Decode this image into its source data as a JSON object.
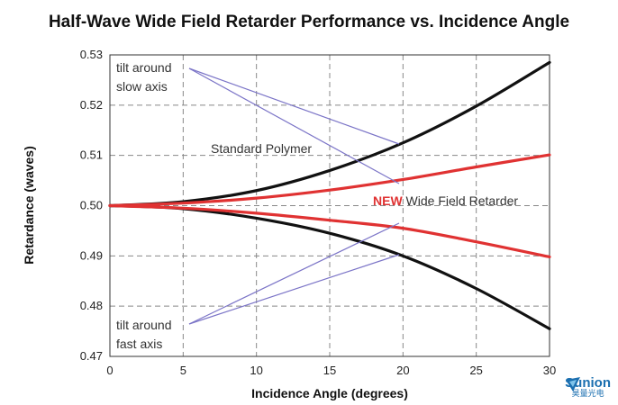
{
  "chart_data": {
    "type": "line",
    "title": "Half-Wave Wide Field Retarder Performance vs. Incidence Angle",
    "xlabel": "Incidence Angle (degrees)",
    "ylabel": "Retardance (waves)",
    "xlim": [
      0,
      30
    ],
    "ylim": [
      0.47,
      0.53
    ],
    "xticks": [
      "0",
      "5",
      "10",
      "15",
      "20",
      "25",
      "30"
    ],
    "yticks": [
      "0.47",
      "0.48",
      "0.49",
      "0.50",
      "0.51",
      "0.52",
      "0.53"
    ],
    "grid": true,
    "series": [
      {
        "name": "Standard Polymer",
        "axis": "slow",
        "color": "#111111",
        "x": [
          0,
          5,
          10,
          15,
          20,
          25,
          30
        ],
        "y": [
          0.5,
          0.5008,
          0.503,
          0.507,
          0.5125,
          0.5198,
          0.5285
        ]
      },
      {
        "name": "Standard Polymer",
        "axis": "fast",
        "color": "#111111",
        "x": [
          0,
          5,
          10,
          15,
          20,
          25,
          30
        ],
        "y": [
          0.5,
          0.4994,
          0.4975,
          0.4945,
          0.49,
          0.4835,
          0.4755
        ]
      },
      {
        "name": "NEW Wide Field Retarder",
        "axis": "slow",
        "color": "#e03232",
        "x": [
          0,
          5,
          10,
          15,
          20,
          25,
          30
        ],
        "y": [
          0.5,
          0.5005,
          0.5015,
          0.5031,
          0.5052,
          0.5077,
          0.5101
        ]
      },
      {
        "name": "NEW Wide Field Retarder",
        "axis": "fast",
        "color": "#e03232",
        "x": [
          0,
          5,
          10,
          15,
          20,
          25,
          30
        ],
        "y": [
          0.5,
          0.4995,
          0.4985,
          0.4971,
          0.4955,
          0.4928,
          0.4898
        ]
      }
    ],
    "annotations": {
      "slow_axis": [
        "tilt around",
        "slow axis"
      ],
      "fast_axis": [
        "tilt around",
        "fast axis"
      ],
      "standard": "Standard Polymer",
      "new_prefix": "NEW",
      "new_rest": " Wide Field Retarder"
    }
  },
  "logo": {
    "brand": "Sunion",
    "cn": "昊量光电"
  }
}
